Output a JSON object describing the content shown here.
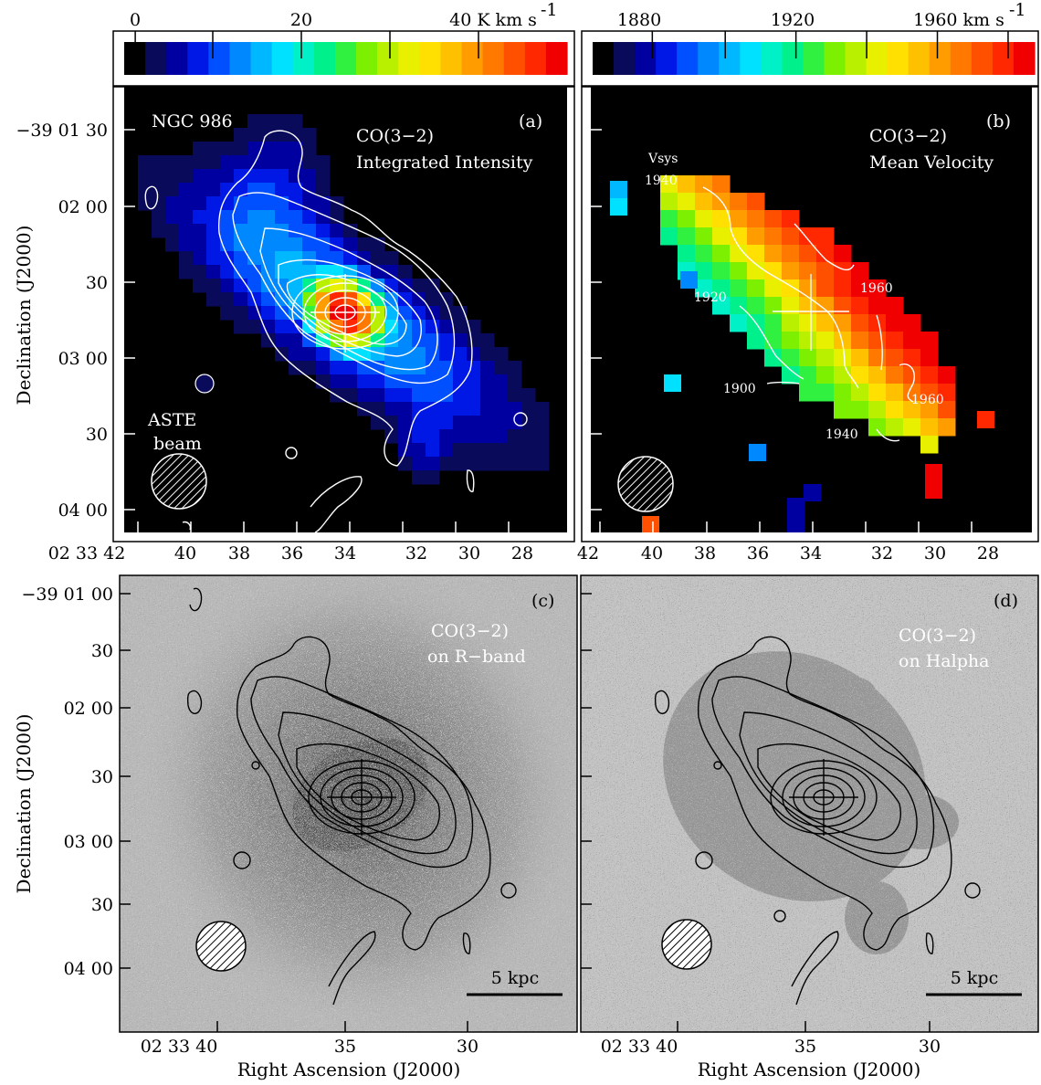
{
  "colorbar_a": {
    "ticks": [
      "0",
      "20",
      "40 K km s"
    ],
    "unit_sup": "-1",
    "min": 0,
    "max": 52
  },
  "colorbar_b": {
    "ticks": [
      "1880",
      "1920",
      "1960 km s"
    ],
    "unit_sup": "-1",
    "min": 1866,
    "max": 1970
  },
  "panel_a": {
    "object": "NGC 986",
    "tag": "(a)",
    "title_line1": "CO(3−2)",
    "title_line2": "Integrated Intensity",
    "beam_line1": "ASTE",
    "beam_line2": "beam"
  },
  "panel_b": {
    "tag": "(b)",
    "title_line1": "CO(3−2)",
    "title_line2": "Mean Velocity",
    "vsys_line1": "Vsys",
    "vsys_line2": "1940",
    "contour_labels": [
      "1920",
      "1960",
      "1900",
      "1960",
      "1940"
    ]
  },
  "panel_c": {
    "tag": "(c)",
    "title_line1": "CO(3−2)",
    "title_line2": "on R−band",
    "scalebar": "5 kpc"
  },
  "panel_d": {
    "tag": "(d)",
    "title_line1": "CO(3−2)",
    "title_line2": "on Halpha",
    "scalebar": "5 kpc"
  },
  "axes": {
    "ylabel": "Declination (J2000)",
    "xlabel": "Right Ascension (J2000)",
    "dec_ticks_top": [
      "−39 01 30",
      "02 00",
      "30",
      "03 00",
      "30",
      "04 00"
    ],
    "dec_ticks_bottom": [
      "−39 01 00",
      "30",
      "02 00",
      "30",
      "03 00",
      "30",
      "04 00"
    ],
    "ra_ticks_top": [
      "02 33 42",
      "40",
      "38",
      "36",
      "34",
      "32",
      "30",
      "28"
    ],
    "ra_ticks_top_b": [
      "42",
      "40",
      "38",
      "36",
      "34",
      "32",
      "30",
      "28"
    ],
    "ra_ticks_bottom": [
      "02 33 40",
      "35",
      "30"
    ]
  },
  "colors": {
    "background": "#000000",
    "sky_gray": "#b8b8b8",
    "jet": [
      "#000000",
      "#0a0a5a",
      "#0000a0",
      "#0018e6",
      "#0050ff",
      "#0088ff",
      "#00b8ff",
      "#00e0ff",
      "#00f0c8",
      "#00f08c",
      "#30f040",
      "#7cf000",
      "#b8f000",
      "#e8f000",
      "#ffe000",
      "#ffc000",
      "#ff9c00",
      "#ff7800",
      "#ff5000",
      "#ff2800",
      "#f00000"
    ]
  }
}
